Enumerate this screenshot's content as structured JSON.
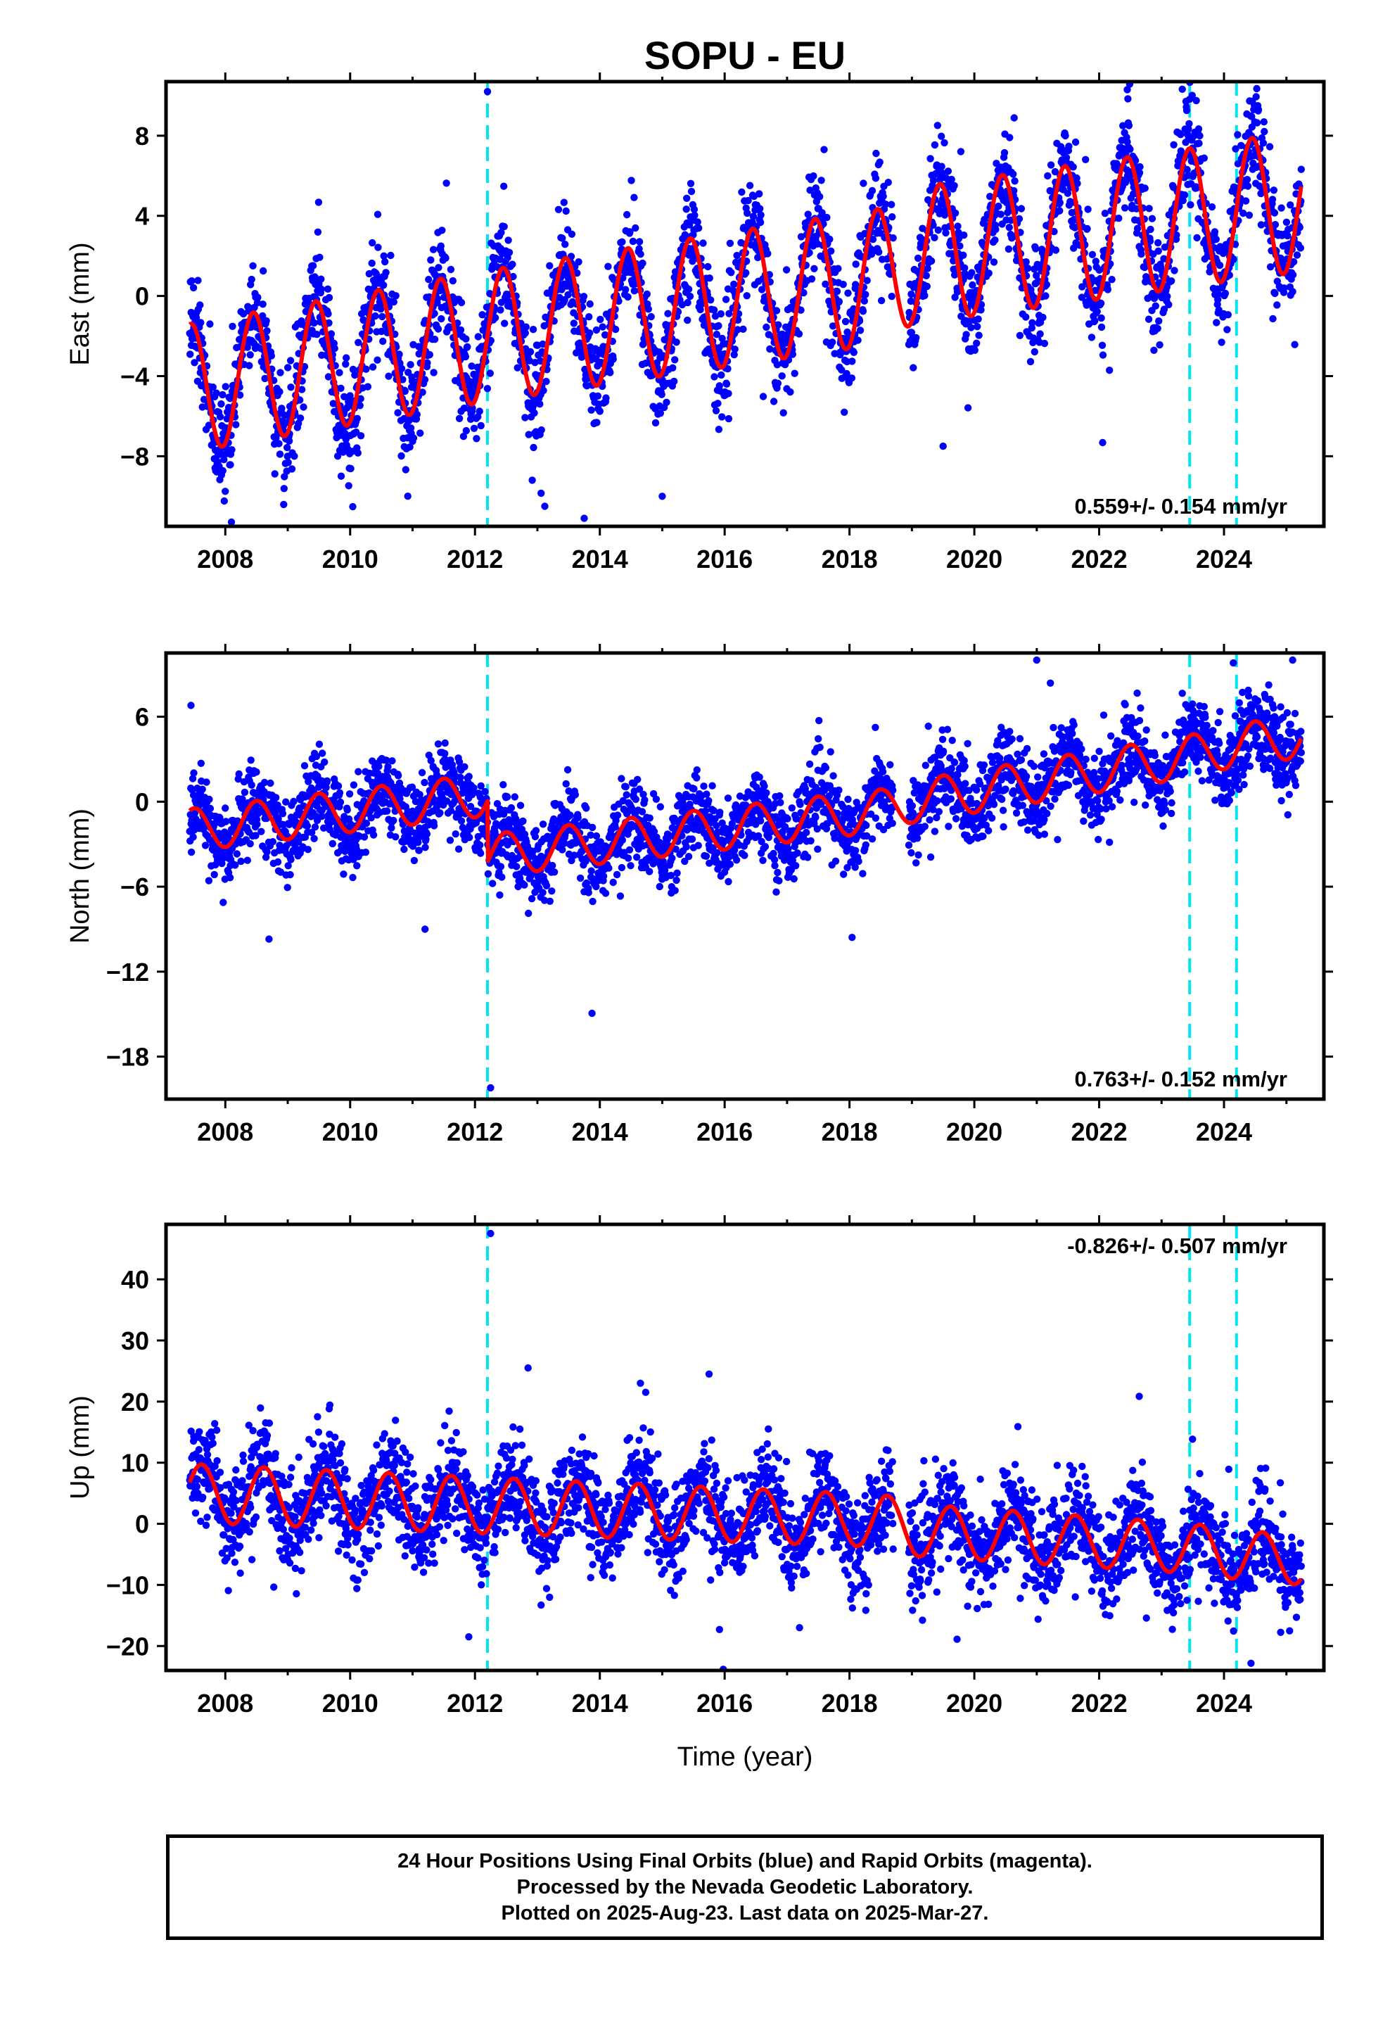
{
  "chart_data": {
    "type": "scatter",
    "title": "SOPU - EU",
    "xlabel": "Time (year)",
    "x_ticks": [
      2008,
      2010,
      2012,
      2014,
      2016,
      2018,
      2020,
      2022,
      2024
    ],
    "xlim": [
      2007.05,
      2025.6
    ],
    "data_span": {
      "start": 2007.43,
      "end": 2025.24
    },
    "equipment_changes": [
      2012.2,
      2023.45,
      2024.2
    ],
    "series_colors": {
      "final_orbits": "#0000ff",
      "model": "#ff0000",
      "breaks": "#00e5ee"
    },
    "panels": [
      {
        "name": "East",
        "ylabel": "East (mm)",
        "ylim": [
          -11.5,
          10.7
        ],
        "yticks": [
          8,
          4,
          0,
          -4,
          -8
        ],
        "rate_label": "0.559+/- 0.154 mm/yr",
        "model": {
          "knots": [
            2007.43,
            2012.2,
            2018.55,
            2019.0,
            2023.45,
            2024.2,
            2025.24
          ],
          "offset_at_knots": [
            -4.6,
            -2.0,
            1.0,
            2.0,
            3.9,
            4.3,
            4.7
          ],
          "annual_amplitude": 3.2,
          "annual_peak": 0.45,
          "amplitude_at_end": 3.5
        },
        "scatter": {
          "noise": 1.3,
          "outlier_rate": 0.01
        },
        "outliers": [
          [
            2012.2,
            10.2
          ],
          [
            2013.75,
            -11.1
          ],
          [
            2022.45,
            10.3
          ],
          [
            2019.5,
            -7.5
          ],
          [
            2015.0,
            -10.0
          ]
        ]
      },
      {
        "name": "North",
        "ylabel": "North (mm)",
        "ylim": [
          -21.0,
          10.5
        ],
        "yticks": [
          6,
          0,
          -6,
          -12,
          -18
        ],
        "rate_label": "0.763+/- 0.152 mm/yr",
        "model": {
          "knots": [
            2007.43,
            2012.2,
            2012.21,
            2018.55,
            2019.0,
            2023.45,
            2024.2,
            2025.24
          ],
          "offset_at_knots": [
            -2.0,
            0.5,
            -3.8,
            -0.6,
            0.0,
            3.2,
            4.0,
            4.6
          ],
          "annual_amplitude": 1.5,
          "annual_peak": 0.5,
          "amplitude_at_end": 1.5
        },
        "scatter": {
          "noise": 1.4,
          "outlier_rate": 0.008
        },
        "outliers": [
          [
            2007.45,
            6.8
          ],
          [
            2012.25,
            -20.2
          ],
          [
            2021.0,
            10.0
          ],
          [
            2024.15,
            9.8
          ],
          [
            2025.1,
            10.0
          ],
          [
            2011.2,
            -9.0
          ],
          [
            2008.7,
            -9.7
          ]
        ]
      },
      {
        "name": "Up",
        "ylabel": "Up (mm)",
        "ylim": [
          -24.0,
          49.0
        ],
        "yticks": [
          40,
          30,
          20,
          10,
          0,
          -10,
          -20
        ],
        "rate_label": "-0.826+/- 0.507 mm/yr",
        "model": {
          "knots": [
            2007.43,
            2012.2,
            2018.55,
            2019.0,
            2023.45,
            2024.2,
            2025.24
          ],
          "offset_at_knots": [
            5.0,
            3.0,
            0.5,
            -1.0,
            -4.0,
            -5.0,
            -6.0
          ],
          "annual_amplitude": 4.8,
          "annual_peak": 0.62,
          "amplitude_at_end": 4.0
        },
        "scatter": {
          "noise": 4.0,
          "outlier_rate": 0.012
        },
        "outliers": [
          [
            2012.25,
            47.5
          ],
          [
            2015.75,
            24.5
          ],
          [
            2012.85,
            25.5
          ],
          [
            2014.65,
            23.0
          ],
          [
            2011.9,
            -18.5
          ],
          [
            2017.2,
            -17.0
          ]
        ]
      }
    ]
  },
  "footer": {
    "line1": "24 Hour Positions Using Final Orbits (blue) and Rapid Orbits (magenta).",
    "line2": "Processed by the Nevada Geodetic Laboratory.",
    "line3": "Plotted on 2025-Aug-23. Last data on 2025-Mar-27."
  }
}
